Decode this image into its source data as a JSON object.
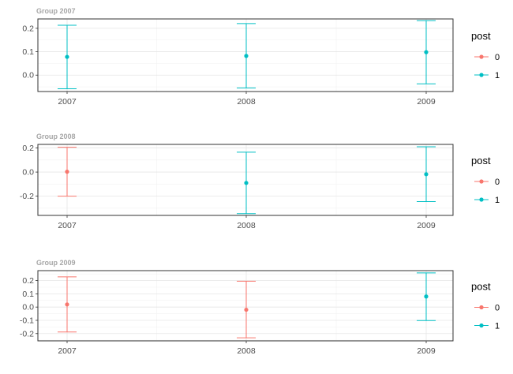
{
  "legend": {
    "title": "post",
    "entries": [
      {
        "label": "0",
        "color": "#F8766D"
      },
      {
        "label": "1",
        "color": "#00BFC4"
      }
    ]
  },
  "chart_data": [
    {
      "type": "errorbar",
      "title": "Group 2007",
      "categories": [
        "2007",
        "2008",
        "2009"
      ],
      "ylim": [
        -0.07,
        0.24
      ],
      "yticks": [
        0.0,
        0.1,
        0.2
      ],
      "ytick_labels": [
        "0.0",
        "0.1",
        "0.2"
      ],
      "grid": true,
      "legend_position": "right",
      "points": [
        {
          "x": "2007",
          "post": "1",
          "y": 0.078,
          "ymin": -0.058,
          "ymax": 0.213
        },
        {
          "x": "2008",
          "post": "1",
          "y": 0.082,
          "ymin": -0.055,
          "ymax": 0.22
        },
        {
          "x": "2009",
          "post": "1",
          "y": 0.098,
          "ymin": -0.037,
          "ymax": 0.233
        }
      ]
    },
    {
      "type": "errorbar",
      "title": "Group 2008",
      "categories": [
        "2007",
        "2008",
        "2009"
      ],
      "ylim": [
        -0.36,
        0.23
      ],
      "yticks": [
        -0.2,
        0.0,
        0.2
      ],
      "ytick_labels": [
        "-0.2",
        "0.0",
        "0.2"
      ],
      "grid": true,
      "legend_position": "right",
      "points": [
        {
          "x": "2007",
          "post": "0",
          "y": 0.003,
          "ymin": -0.2,
          "ymax": 0.206
        },
        {
          "x": "2008",
          "post": "1",
          "y": -0.09,
          "ymin": -0.345,
          "ymax": 0.165
        },
        {
          "x": "2009",
          "post": "1",
          "y": -0.018,
          "ymin": -0.245,
          "ymax": 0.21
        }
      ]
    },
    {
      "type": "errorbar",
      "title": "Group 2009",
      "categories": [
        "2007",
        "2008",
        "2009"
      ],
      "ylim": [
        -0.255,
        0.275
      ],
      "yticks": [
        -0.2,
        -0.1,
        0.0,
        0.1,
        0.2
      ],
      "ytick_labels": [
        "-0.2",
        "-0.1",
        "0.0",
        "0.1",
        "0.2"
      ],
      "grid": true,
      "legend_position": "right",
      "points": [
        {
          "x": "2007",
          "post": "0",
          "y": 0.02,
          "ymin": -0.188,
          "ymax": 0.228
        },
        {
          "x": "2008",
          "post": "0",
          "y": -0.02,
          "ymin": -0.232,
          "ymax": 0.195
        },
        {
          "x": "2009",
          "post": "1",
          "y": 0.08,
          "ymin": -0.102,
          "ymax": 0.258
        }
      ]
    }
  ]
}
